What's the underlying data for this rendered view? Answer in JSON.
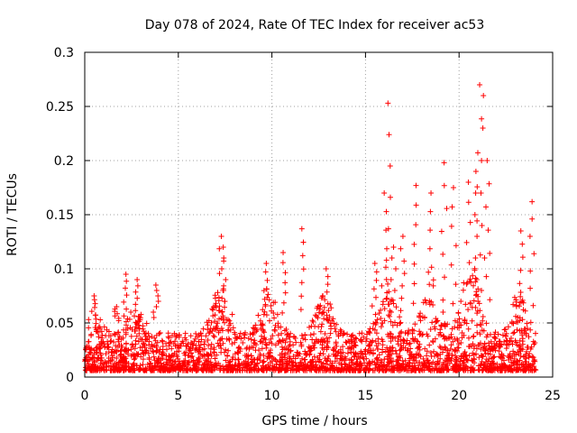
{
  "chart_data": {
    "type": "scatter",
    "title": "Day 078 of 2024, Rate Of TEC Index for receiver ac53",
    "xlabel": "GPS time / hours",
    "ylabel": "ROTI / TECUs",
    "xlim": [
      0,
      25
    ],
    "ylim": [
      0,
      0.3
    ],
    "x_ticks": [
      0,
      5,
      10,
      15,
      20,
      25
    ],
    "x_tick_labels": [
      "0",
      "5",
      "10",
      "15",
      "20",
      "25"
    ],
    "y_ticks": [
      0,
      0.05,
      0.1,
      0.15,
      0.2,
      0.25,
      0.3
    ],
    "y_tick_labels": [
      "0",
      "0.05",
      "0.1",
      "0.15",
      "0.2",
      "0.25",
      "0.3"
    ],
    "grid": true,
    "marker": "+",
    "marker_color": "#ff0000",
    "series": [
      {
        "name": "ROTI",
        "color": "#ff0000",
        "note": "dense band of points 0.005–0.05 TECU/s across 0–24 h; notable spikes listed",
        "x": [
          0.5,
          1.7,
          2.2,
          2.8,
          3.8,
          7.3,
          7.4,
          9.7,
          10.6,
          11.6,
          12.9,
          15.5,
          16.0,
          16.2,
          16.5,
          17.0,
          17.7,
          18.5,
          19.2,
          19.7,
          20.5,
          20.9,
          21.1,
          21.3,
          21.5,
          23.3,
          23.9
        ],
        "y": [
          0.075,
          0.065,
          0.095,
          0.09,
          0.085,
          0.13,
          0.12,
          0.105,
          0.115,
          0.137,
          0.1,
          0.105,
          0.17,
          0.253,
          0.12,
          0.13,
          0.177,
          0.17,
          0.198,
          0.175,
          0.18,
          0.19,
          0.27,
          0.26,
          0.2,
          0.135,
          0.162
        ]
      }
    ]
  }
}
